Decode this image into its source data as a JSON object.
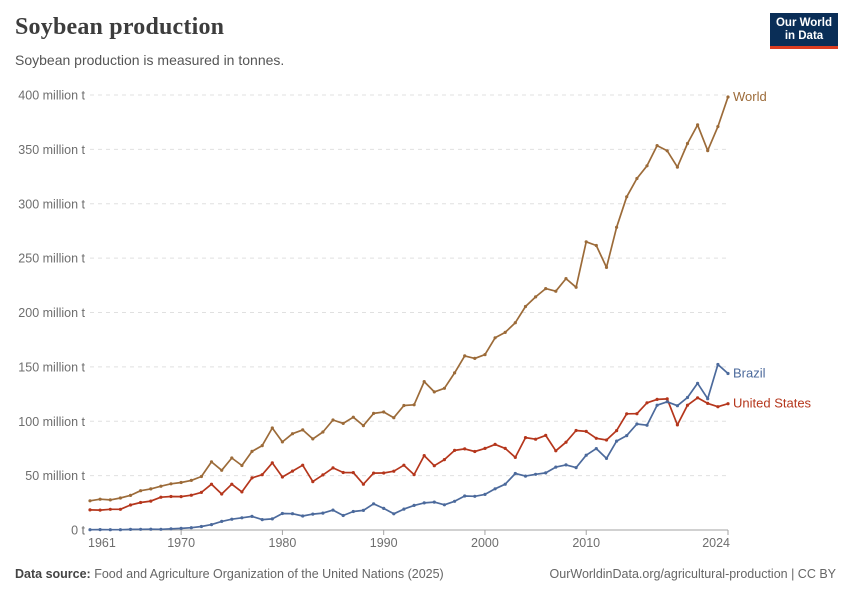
{
  "header": {
    "title": "Soybean production",
    "subtitle": "Soybean production is measured in tonnes.",
    "logo": {
      "line1": "Our World",
      "line2": "in Data"
    }
  },
  "footer": {
    "source_label": "Data source:",
    "source_text": " Food and Agriculture Organization of the United Nations (2025)",
    "link_text": "OurWorldinData.org/agricultural-production | CC BY"
  },
  "colors": {
    "title": "#3d3d3d",
    "subtitle": "#555555",
    "axis_text": "#6e6e6e",
    "gridline": "#e0e0e0",
    "axis_line": "#a3a3a3",
    "logo_bg": "#0a2e57",
    "logo_accent": "#dc3d21",
    "world": "#9c6b39",
    "brazil": "#4c6a9c",
    "united_states": "#b5361c"
  },
  "chart_data": {
    "type": "line",
    "title": "Soybean production",
    "unit": "tonnes",
    "grid": "horizontal-dashed",
    "legend_position": "end-of-line",
    "ylim": [
      0,
      400
    ],
    "yticks": [
      0,
      50,
      100,
      150,
      200,
      250,
      300,
      350,
      400
    ],
    "ytick_labels": [
      "0 t",
      "50 million t",
      "100 million t",
      "150 million t",
      "200 million t",
      "250 million t",
      "300 million t",
      "350 million t",
      "400 million t"
    ],
    "xlim": [
      1961,
      2024
    ],
    "xticks": [
      1961,
      1970,
      1980,
      1990,
      2000,
      2010,
      2024
    ],
    "x": [
      1961,
      1962,
      1963,
      1964,
      1965,
      1966,
      1967,
      1968,
      1969,
      1970,
      1971,
      1972,
      1973,
      1974,
      1975,
      1976,
      1977,
      1978,
      1979,
      1980,
      1981,
      1982,
      1983,
      1984,
      1985,
      1986,
      1987,
      1988,
      1989,
      1990,
      1991,
      1992,
      1993,
      1994,
      1995,
      1996,
      1997,
      1998,
      1999,
      2000,
      2001,
      2002,
      2003,
      2004,
      2005,
      2006,
      2007,
      2008,
      2009,
      2010,
      2011,
      2012,
      2013,
      2014,
      2015,
      2016,
      2017,
      2018,
      2019,
      2020,
      2021,
      2022,
      2023,
      2024
    ],
    "series": [
      {
        "name": "World",
        "color": "#9c6b39",
        "values": [
          26.88,
          28.34,
          27.64,
          29.39,
          31.8,
          36.14,
          37.75,
          40.32,
          42.46,
          43.7,
          45.63,
          49.2,
          62.65,
          54.88,
          66.17,
          59.33,
          72.24,
          77.64,
          93.81,
          81.04,
          88.53,
          92.07,
          83.73,
          90.15,
          101.16,
          98.05,
          103.74,
          95.99,
          107.25,
          108.46,
          103.31,
          114.45,
          115.15,
          136.46,
          126.95,
          130.26,
          144.42,
          160.1,
          157.82,
          161.29,
          176.76,
          181.68,
          190.65,
          205.52,
          214.35,
          221.97,
          219.63,
          231.17,
          223.18,
          265.05,
          261.61,
          241.44,
          278.35,
          306.43,
          323.2,
          334.89,
          353.46,
          348.71,
          333.67,
          355.39,
          372.55,
          348.86,
          370.96,
          398.2
        ]
      },
      {
        "name": "United States",
        "color": "#b5361c",
        "values": [
          18.47,
          18.32,
          19.03,
          19.08,
          23.01,
          25.27,
          26.58,
          30.13,
          30.84,
          30.68,
          32.01,
          34.58,
          42.12,
          33.1,
          42.14,
          35.07,
          47.95,
          50.86,
          61.72,
          48.77,
          54.14,
          59.61,
          44.52,
          50.64,
          57.13,
          52.87,
          52.75,
          42.15,
          52.35,
          52.42,
          54.07,
          59.61,
          50.92,
          68.44,
          59.17,
          64.78,
          73.18,
          74.6,
          72.22,
          75.06,
          78.67,
          75.01,
          66.78,
          85.01,
          83.51,
          87.0,
          72.86,
          80.75,
          91.47,
          90.66,
          84.29,
          82.79,
          91.39,
          106.88,
          106.95,
          116.93,
          120.07,
          120.51,
          96.67,
          114.75,
          121.53,
          116.38,
          113.34,
          116.1
        ]
      },
      {
        "name": "Brazil",
        "color": "#4c6a9c",
        "values": [
          0.27,
          0.35,
          0.32,
          0.3,
          0.52,
          0.6,
          0.72,
          0.65,
          1.06,
          1.51,
          2.08,
          3.22,
          5.01,
          7.88,
          9.89,
          11.23,
          12.51,
          9.54,
          10.24,
          15.16,
          15.01,
          12.84,
          14.58,
          15.54,
          18.28,
          13.33,
          17.02,
          18.02,
          24.07,
          19.9,
          14.94,
          19.21,
          22.59,
          24.93,
          25.68,
          23.17,
          26.39,
          31.31,
          30.99,
          32.73,
          37.91,
          42.11,
          51.92,
          49.55,
          51.18,
          52.46,
          57.86,
          59.83,
          57.35,
          68.76,
          74.82,
          65.85,
          81.72,
          86.76,
          97.46,
          96.39,
          114.73,
          117.91,
          114.32,
          121.82,
          134.93,
          120.7,
          152.14,
          143.9
        ]
      }
    ]
  }
}
